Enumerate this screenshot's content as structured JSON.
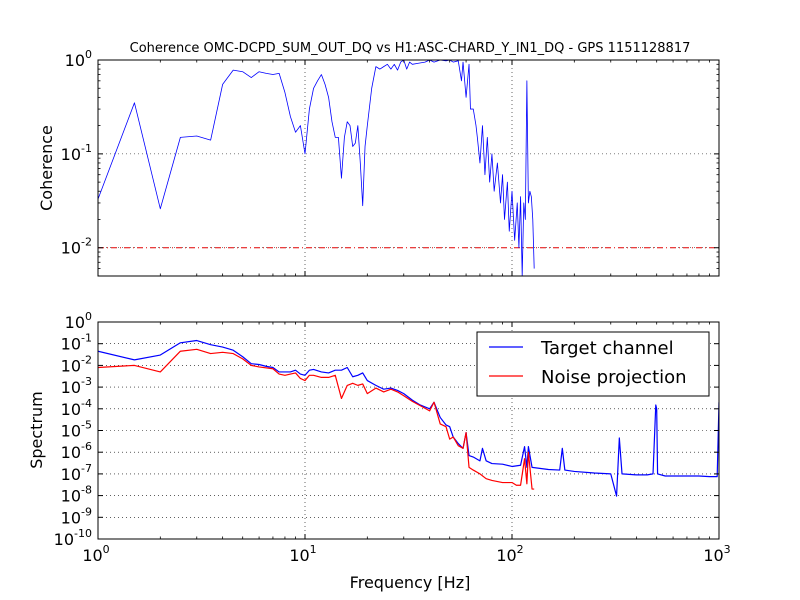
{
  "chart_data": [
    {
      "type": "line",
      "title": "Coherence OMC-DCPD_SUM_OUT_DQ vs H1:ASC-CHARD_Y_IN1_DQ - GPS 1151128817",
      "xlabel": "",
      "ylabel": "Coherence",
      "xscale": "log",
      "yscale": "log",
      "xlim": [
        1,
        1000
      ],
      "ylim": [
        0.005,
        1
      ],
      "grid": true,
      "xtick_labels_visible": false,
      "ytick_values": [
        0.01,
        0.1,
        1
      ],
      "ytick_exponents": [
        "-2",
        "-1",
        "0"
      ],
      "threshold": {
        "value": 0.01,
        "color": "#e00000",
        "style": "dash-dot"
      },
      "series": [
        {
          "color": "#0000ff",
          "points": [
            [
              1,
              0.033
            ],
            [
              1.5,
              0.35
            ],
            [
              2,
              0.026
            ],
            [
              2.5,
              0.15
            ],
            [
              3,
              0.155
            ],
            [
              3.5,
              0.14
            ],
            [
              4,
              0.55
            ],
            [
              4.5,
              0.78
            ],
            [
              5,
              0.75
            ],
            [
              5.5,
              0.65
            ],
            [
              6,
              0.75
            ],
            [
              6.5,
              0.72
            ],
            [
              7,
              0.7
            ],
            [
              7.5,
              0.72
            ],
            [
              8,
              0.45
            ],
            [
              8.5,
              0.25
            ],
            [
              9,
              0.17
            ],
            [
              9.5,
              0.2
            ],
            [
              10,
              0.1
            ],
            [
              10.5,
              0.3
            ],
            [
              11,
              0.5
            ],
            [
              11.5,
              0.6
            ],
            [
              12,
              0.7
            ],
            [
              12.5,
              0.55
            ],
            [
              13,
              0.4
            ],
            [
              13.5,
              0.22
            ],
            [
              14,
              0.15
            ],
            [
              14.5,
              0.15
            ],
            [
              15,
              0.055
            ],
            [
              15.5,
              0.15
            ],
            [
              16,
              0.22
            ],
            [
              16.5,
              0.2
            ],
            [
              17,
              0.12
            ],
            [
              17.5,
              0.13
            ],
            [
              18,
              0.2
            ],
            [
              18.5,
              0.08
            ],
            [
              19,
              0.028
            ],
            [
              19.5,
              0.12
            ],
            [
              20,
              0.2
            ],
            [
              21,
              0.5
            ],
            [
              22,
              0.85
            ],
            [
              23,
              0.8
            ],
            [
              24,
              0.85
            ],
            [
              25,
              0.9
            ],
            [
              26,
              0.8
            ],
            [
              27,
              0.9
            ],
            [
              28,
              0.78
            ],
            [
              29,
              0.95
            ],
            [
              30,
              1
            ],
            [
              31,
              0.8
            ],
            [
              32,
              0.95
            ],
            [
              33,
              0.9
            ],
            [
              35,
              0.92
            ],
            [
              38,
              0.95
            ],
            [
              40,
              1
            ],
            [
              42,
              0.95
            ],
            [
              45,
              1
            ],
            [
              48,
              0.98
            ],
            [
              50,
              1
            ],
            [
              52,
              0.95
            ],
            [
              55,
              0.98
            ],
            [
              57,
              0.6
            ],
            [
              58,
              0.95
            ],
            [
              60,
              0.4
            ],
            [
              62,
              0.9
            ],
            [
              63,
              0.3
            ],
            [
              65,
              0.3
            ],
            [
              67,
              0.2
            ],
            [
              68,
              0.15
            ],
            [
              70,
              0.08
            ],
            [
              72,
              0.2
            ],
            [
              74,
              0.06
            ],
            [
              76,
              0.15
            ],
            [
              78,
              0.05
            ],
            [
              80,
              0.1
            ],
            [
              82,
              0.04
            ],
            [
              85,
              0.08
            ],
            [
              88,
              0.03
            ],
            [
              90,
              0.06
            ],
            [
              92,
              0.02
            ],
            [
              95,
              0.05
            ],
            [
              97,
              0.015
            ],
            [
              100,
              0.04
            ],
            [
              103,
              0.012
            ],
            [
              106,
              0.03
            ],
            [
              108,
              0.01
            ],
            [
              110,
              0.035
            ],
            [
              112,
              0.005
            ],
            [
              114,
              0.03
            ],
            [
              116,
              0.02
            ],
            [
              118,
              0.6
            ],
            [
              120,
              0.03
            ],
            [
              122,
              0.04
            ],
            [
              124,
              0.035
            ],
            [
              126,
              0.02
            ],
            [
              128,
              0.006
            ]
          ]
        }
      ]
    },
    {
      "type": "line",
      "title": "",
      "xlabel": "Frequency [Hz]",
      "ylabel": "Spectrum",
      "xscale": "log",
      "yscale": "log",
      "xlim": [
        1,
        1000
      ],
      "ylim": [
        1e-10,
        1
      ],
      "grid": true,
      "legend_position": "top-right",
      "xtick_values": [
        1,
        10,
        100,
        1000
      ],
      "xtick_exponents": [
        "0",
        "1",
        "2",
        "3"
      ],
      "ytick_values": [
        1e-10,
        1e-09,
        1e-08,
        1e-07,
        1e-06,
        1e-05,
        0.0001,
        0.001,
        0.01,
        0.1,
        1
      ],
      "ytick_exponents": [
        "-10",
        "-9",
        "-8",
        "-7",
        "-6",
        "-5",
        "-4",
        "-3",
        "-2",
        "-1",
        "0"
      ],
      "series": [
        {
          "name": "Target channel",
          "color": "#0000ff",
          "points": [
            [
              1,
              0.045
            ],
            [
              1.5,
              0.018
            ],
            [
              2,
              0.03
            ],
            [
              2.5,
              0.11
            ],
            [
              3,
              0.14
            ],
            [
              3.5,
              0.09
            ],
            [
              4,
              0.07
            ],
            [
              4.5,
              0.05
            ],
            [
              5,
              0.025
            ],
            [
              5.5,
              0.012
            ],
            [
              6,
              0.011
            ],
            [
              6.5,
              0.009
            ],
            [
              7,
              0.008
            ],
            [
              7.5,
              0.005
            ],
            [
              8,
              0.005
            ],
            [
              8.5,
              0.005
            ],
            [
              9,
              0.006
            ],
            [
              9.5,
              0.004
            ],
            [
              10,
              0.0035
            ],
            [
              10.5,
              0.006
            ],
            [
              11,
              0.0065
            ],
            [
              12,
              0.005
            ],
            [
              13,
              0.0045
            ],
            [
              14,
              0.006
            ],
            [
              15,
              0.006
            ],
            [
              16,
              0.008
            ],
            [
              17,
              0.003
            ],
            [
              18,
              0.0035
            ],
            [
              19,
              0.0045
            ],
            [
              20,
              0.002
            ],
            [
              22,
              0.0012
            ],
            [
              24,
              0.0008
            ],
            [
              26,
              0.0009
            ],
            [
              28,
              0.0007
            ],
            [
              30,
              0.0005
            ],
            [
              33,
              0.00025
            ],
            [
              36,
              0.00015
            ],
            [
              40,
              0.0001
            ],
            [
              42,
              0.0002
            ],
            [
              45,
              4e-05
            ],
            [
              48,
              1.8e-05
            ],
            [
              50,
              1.5e-05
            ],
            [
              52,
              5e-06
            ],
            [
              55,
              2.5e-06
            ],
            [
              58,
              1.5e-06
            ],
            [
              60,
              8e-06
            ],
            [
              62,
              7e-07
            ],
            [
              65,
              6e-07
            ],
            [
              70,
              4e-07
            ],
            [
              72,
              1.5e-06
            ],
            [
              75,
              4e-07
            ],
            [
              80,
              3e-07
            ],
            [
              90,
              2.8e-07
            ],
            [
              100,
              2.2e-07
            ],
            [
              110,
              2.5e-07
            ],
            [
              115,
              1.8e-06
            ],
            [
              118,
              2e-07
            ],
            [
              120,
              1.8e-06
            ],
            [
              125,
              2e-07
            ],
            [
              150,
              1.6e-07
            ],
            [
              170,
              1.5e-07
            ],
            [
              175,
              1.5e-06
            ],
            [
              180,
              1.5e-07
            ],
            [
              200,
              1.3e-07
            ],
            [
              250,
              1.1e-07
            ],
            [
              300,
              1e-07
            ],
            [
              320,
              9.5e-09
            ],
            [
              330,
              4.5e-06
            ],
            [
              340,
              1e-07
            ],
            [
              400,
              9e-08
            ],
            [
              450,
              9e-08
            ],
            [
              480,
              1e-07
            ],
            [
              495,
              0.00015
            ],
            [
              500,
              0.0001
            ],
            [
              505,
              1e-07
            ],
            [
              550,
              8e-08
            ],
            [
              600,
              8e-08
            ],
            [
              700,
              8e-08
            ],
            [
              800,
              8e-08
            ],
            [
              900,
              7.5e-08
            ],
            [
              980,
              7.5e-08
            ],
            [
              1000,
              0.0002
            ]
          ]
        },
        {
          "name": "Noise projection",
          "color": "#ff0000",
          "points": [
            [
              1,
              0.008
            ],
            [
              1.5,
              0.01
            ],
            [
              2,
              0.005
            ],
            [
              2.5,
              0.045
            ],
            [
              3,
              0.055
            ],
            [
              3.5,
              0.035
            ],
            [
              4,
              0.04
            ],
            [
              4.5,
              0.035
            ],
            [
              5,
              0.02
            ],
            [
              5.5,
              0.01
            ],
            [
              6,
              0.0085
            ],
            [
              7,
              0.007
            ],
            [
              7.5,
              0.004
            ],
            [
              8,
              0.0035
            ],
            [
              9,
              0.0045
            ],
            [
              9.5,
              0.0025
            ],
            [
              10,
              0.002
            ],
            [
              10.5,
              0.0035
            ],
            [
              11,
              0.0035
            ],
            [
              12,
              0.0028
            ],
            [
              13,
              0.0028
            ],
            [
              14,
              0.0035
            ],
            [
              15,
              0.0003
            ],
            [
              16,
              0.0012
            ],
            [
              17,
              0.0015
            ],
            [
              18,
              0.0012
            ],
            [
              19,
              0.0014
            ],
            [
              20,
              0.0005
            ],
            [
              22,
              0.0009
            ],
            [
              24,
              0.0006
            ],
            [
              26,
              0.0008
            ],
            [
              28,
              0.0006
            ],
            [
              30,
              0.0004
            ],
            [
              33,
              0.00022
            ],
            [
              36,
              0.00014
            ],
            [
              40,
              8e-05
            ],
            [
              42,
              0.0002
            ],
            [
              45,
              2e-05
            ],
            [
              48,
              1.5e-05
            ],
            [
              50,
              4e-06
            ],
            [
              52,
              5e-06
            ],
            [
              55,
              2e-06
            ],
            [
              58,
              1.5e-06
            ],
            [
              60,
              8e-06
            ],
            [
              62,
              2e-07
            ],
            [
              65,
              1.5e-07
            ],
            [
              70,
              1e-07
            ],
            [
              75,
              6e-08
            ],
            [
              80,
              5e-08
            ],
            [
              90,
              4e-08
            ],
            [
              100,
              4e-08
            ],
            [
              105,
              3e-08
            ],
            [
              110,
              3e-08
            ],
            [
              115,
              5e-07
            ],
            [
              118,
              3.5e-08
            ],
            [
              120,
              1e-06
            ],
            [
              125,
              2e-08
            ],
            [
              128,
              2e-08
            ]
          ]
        }
      ]
    }
  ]
}
